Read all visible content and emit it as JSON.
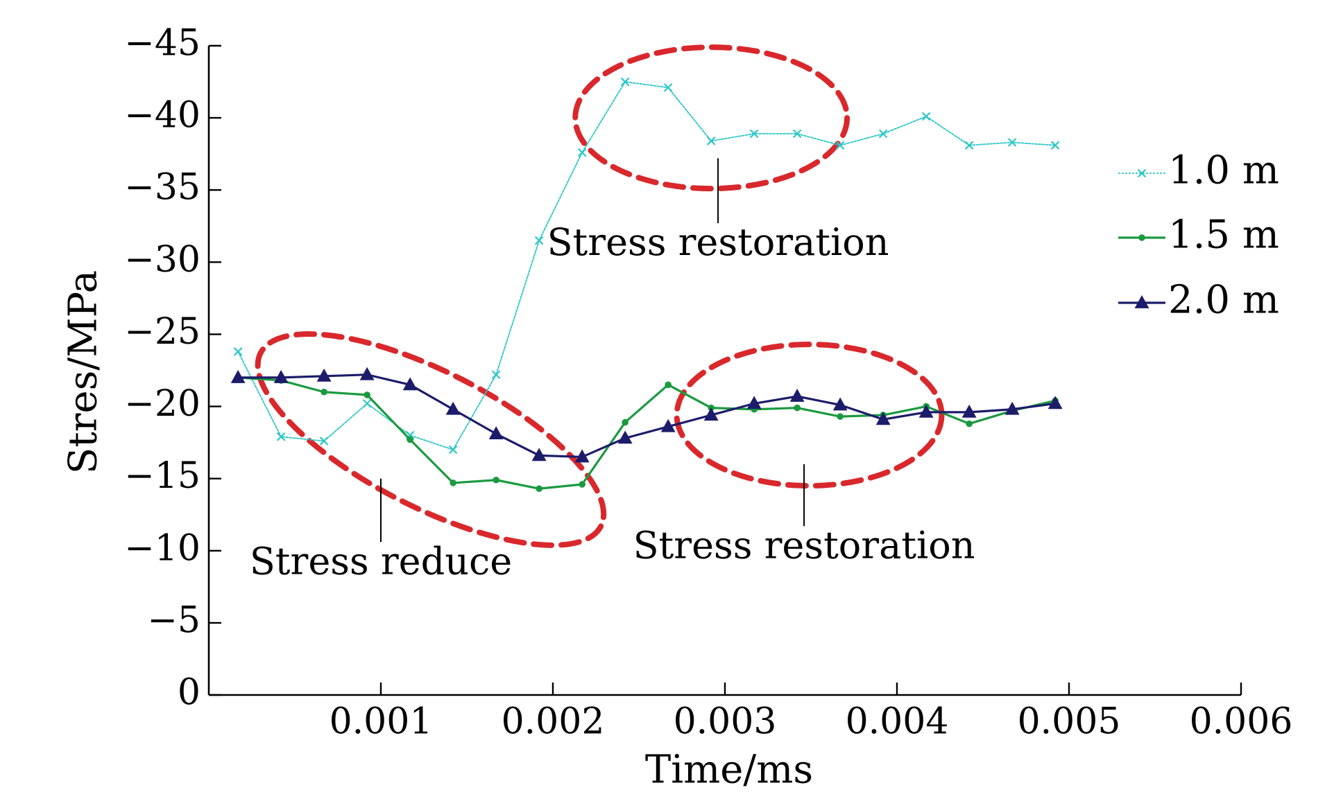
{
  "chart_data": {
    "type": "line",
    "xlabel": "Time/ms",
    "ylabel": "Stres/MPa",
    "xlim": [
      0,
      0.006
    ],
    "ylim": [
      0,
      -45
    ],
    "x_ticks": [
      "0.001",
      "0.002",
      "0.003",
      "0.004",
      "0.005",
      "0.006"
    ],
    "y_ticks": [
      "0",
      "−5",
      "−10",
      "−15",
      "−20",
      "−25",
      "−30",
      "−35",
      "−40",
      "−45"
    ],
    "grid": false,
    "legend_position": "right",
    "colors": {
      "axis": "#000000",
      "highlight": "#d9282c"
    },
    "series": [
      {
        "name": "1.0 m",
        "color": "#2bc7c7",
        "marker": "x",
        "x": [
          0.00017,
          0.00042,
          0.00067,
          0.00092,
          0.00117,
          0.00142,
          0.00167,
          0.00192,
          0.00217,
          0.00242,
          0.00267,
          0.00292,
          0.00317,
          0.00342,
          0.00367,
          0.00392,
          0.00417,
          0.00442,
          0.00467,
          0.00492
        ],
        "values": [
          -23.8,
          -17.9,
          -17.6,
          -20.2,
          -18.0,
          -17.0,
          -22.2,
          -31.5,
          -37.6,
          -42.5,
          -42.1,
          -38.4,
          -38.9,
          -38.9,
          -38.1,
          -38.9,
          -40.1,
          -38.1,
          -38.3,
          -38.1
        ]
      },
      {
        "name": "1.5 m",
        "color": "#1a9a3f",
        "marker": "dot",
        "x": [
          0.00017,
          0.00042,
          0.00067,
          0.00092,
          0.00117,
          0.00142,
          0.00167,
          0.00192,
          0.00217,
          0.00242,
          0.00267,
          0.00292,
          0.00317,
          0.00342,
          0.00367,
          0.00392,
          0.00417,
          0.00442,
          0.00467,
          0.00492
        ],
        "values": [
          -22.0,
          -21.8,
          -21.0,
          -20.8,
          -17.7,
          -14.7,
          -14.9,
          -14.3,
          -14.6,
          -18.9,
          -21.5,
          -19.9,
          -19.8,
          -19.9,
          -19.3,
          -19.4,
          -20.0,
          -18.8,
          -19.7,
          -20.4
        ]
      },
      {
        "name": "2.0 m",
        "color": "#1c1c6b",
        "marker": "triangle",
        "x": [
          0.00017,
          0.00042,
          0.00067,
          0.00092,
          0.00117,
          0.00142,
          0.00167,
          0.00192,
          0.00217,
          0.00242,
          0.00267,
          0.00292,
          0.00317,
          0.00342,
          0.00367,
          0.00392,
          0.00417,
          0.00442,
          0.00467,
          0.00492
        ],
        "values": [
          -22.0,
          -22.0,
          -22.1,
          -22.2,
          -21.5,
          -19.8,
          -18.1,
          -16.6,
          -16.5,
          -17.8,
          -18.6,
          -19.4,
          -20.2,
          -20.7,
          -20.1,
          -19.1,
          -19.6,
          -19.6,
          -19.8,
          -20.2
        ]
      }
    ],
    "annotations": [
      {
        "text": "Stress reduce",
        "center_x": 0.00129,
        "center_y": -17.7,
        "radius_x": 0.00111,
        "radius_y": -4.7,
        "rotation": 27,
        "callout_from": [
          0.001,
          -15.0
        ],
        "callout_to": [
          0.001,
          -10.6
        ]
      },
      {
        "text": "Stress restoration",
        "center_x": 0.00292,
        "center_y": -40.0,
        "radius_x": 0.00079,
        "radius_y": -4.9,
        "rotation": 0,
        "callout_from": [
          0.00296,
          -37.2
        ],
        "callout_to": [
          0.00296,
          -32.7
        ]
      },
      {
        "text": "Stress restoration",
        "center_x": 0.00349,
        "center_y": -19.4,
        "radius_x": 0.00077,
        "radius_y": -4.9,
        "rotation": 0,
        "callout_from": [
          0.00346,
          -16.0
        ],
        "callout_to": [
          0.00346,
          -11.7
        ]
      }
    ]
  }
}
